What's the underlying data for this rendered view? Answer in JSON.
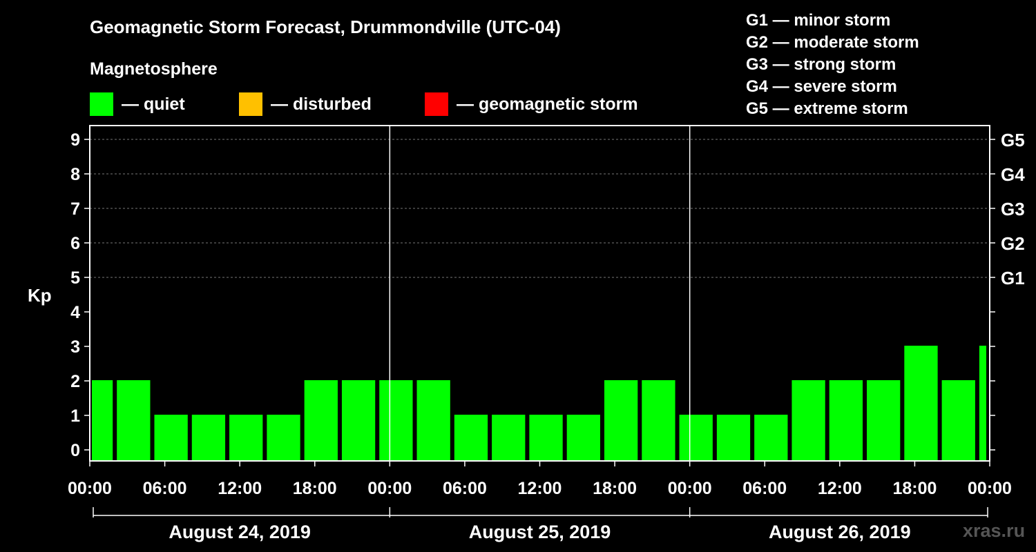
{
  "title": "Geomagnetic Storm Forecast, Drummondville (UTC-04)",
  "subtitle": "Magnetosphere",
  "legend": [
    {
      "label": "— quiet",
      "color": "#00ff00"
    },
    {
      "label": "— disturbed",
      "color": "#ffc000"
    },
    {
      "label": "— geomagnetic storm",
      "color": "#ff0000"
    }
  ],
  "storm_levels": [
    "G1 — minor storm",
    "G2 — moderate storm",
    "G3 — strong storm",
    "G4 — severe storm",
    "G5 — extreme storm"
  ],
  "watermark": "xras.ru",
  "chart_data": {
    "type": "bar",
    "title": "Geomagnetic Storm Forecast, Drummondville (UTC-04)",
    "ylabel": "Kp",
    "ylim": [
      0,
      9
    ],
    "y_ticks": [
      "0",
      "1",
      "2",
      "3",
      "4",
      "5",
      "6",
      "7",
      "8",
      "9"
    ],
    "right_ticks": [
      {
        "kp": 5,
        "label": "G1"
      },
      {
        "kp": 6,
        "label": "G2"
      },
      {
        "kp": 7,
        "label": "G3"
      },
      {
        "kp": 8,
        "label": "G4"
      },
      {
        "kp": 9,
        "label": "G5"
      }
    ],
    "x_tick_labels": [
      "00:00",
      "06:00",
      "12:00",
      "18:00",
      "00:00",
      "06:00",
      "12:00",
      "18:00",
      "00:00",
      "06:00",
      "12:00",
      "18:00",
      "00:00"
    ],
    "days": [
      "August 24, 2019",
      "August 25, 2019",
      "August 26, 2019"
    ],
    "bar_color": "#00ff00",
    "series": [
      {
        "name": "Kp",
        "values": [
          {
            "start_h": 0,
            "end_h": 2,
            "kp": 2
          },
          {
            "start_h": 2,
            "end_h": 5,
            "kp": 2
          },
          {
            "start_h": 5,
            "end_h": 8,
            "kp": 1
          },
          {
            "start_h": 8,
            "end_h": 11,
            "kp": 1
          },
          {
            "start_h": 11,
            "end_h": 14,
            "kp": 1
          },
          {
            "start_h": 14,
            "end_h": 17,
            "kp": 1
          },
          {
            "start_h": 17,
            "end_h": 20,
            "kp": 2
          },
          {
            "start_h": 20,
            "end_h": 23,
            "kp": 2
          },
          {
            "start_h": 23,
            "end_h": 26,
            "kp": 2
          },
          {
            "start_h": 26,
            "end_h": 29,
            "kp": 2
          },
          {
            "start_h": 29,
            "end_h": 32,
            "kp": 1
          },
          {
            "start_h": 32,
            "end_h": 35,
            "kp": 1
          },
          {
            "start_h": 35,
            "end_h": 38,
            "kp": 1
          },
          {
            "start_h": 38,
            "end_h": 41,
            "kp": 1
          },
          {
            "start_h": 41,
            "end_h": 44,
            "kp": 2
          },
          {
            "start_h": 44,
            "end_h": 47,
            "kp": 2
          },
          {
            "start_h": 47,
            "end_h": 50,
            "kp": 1
          },
          {
            "start_h": 50,
            "end_h": 53,
            "kp": 1
          },
          {
            "start_h": 53,
            "end_h": 56,
            "kp": 1
          },
          {
            "start_h": 56,
            "end_h": 59,
            "kp": 2
          },
          {
            "start_h": 59,
            "end_h": 62,
            "kp": 2
          },
          {
            "start_h": 62,
            "end_h": 65,
            "kp": 2
          },
          {
            "start_h": 65,
            "end_h": 68,
            "kp": 3
          },
          {
            "start_h": 68,
            "end_h": 71,
            "kp": 2
          },
          {
            "start_h": 71,
            "end_h": 72,
            "kp": 3
          }
        ]
      }
    ]
  }
}
